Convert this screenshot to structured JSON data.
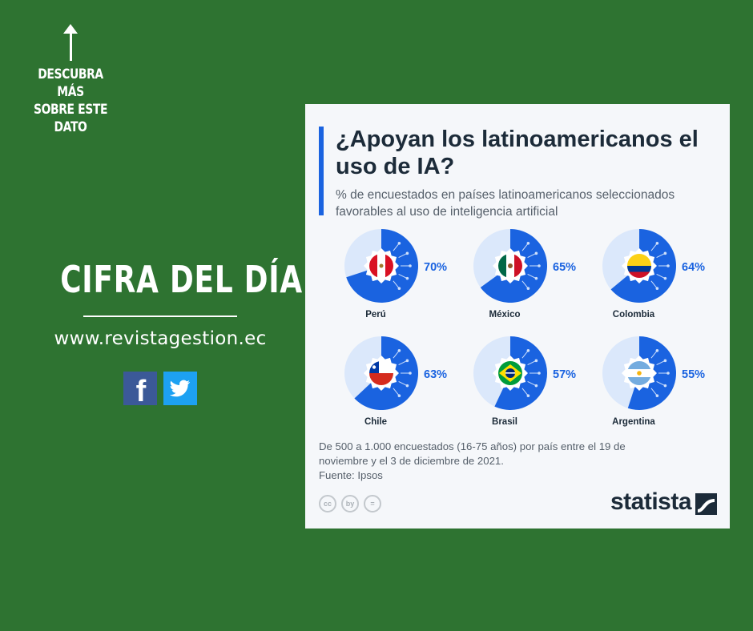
{
  "cta": {
    "text": "DESCUBRA MÁS\nSOBRE ESTE\nDATO"
  },
  "hero": {
    "title": "CIFRA DEL DÍA",
    "url": "www.revistagestion.ec"
  },
  "social": [
    {
      "name": "facebook-icon",
      "glyph": "f"
    },
    {
      "name": "twitter-icon"
    }
  ],
  "card": {
    "title": "¿Apoyan los latinoamericanos el uso de IA?",
    "subtitle": "% de encuestados en países latinoamericanos seleccionados favorables al uso de inteligencia artificial",
    "note": "De 500 a 1.000 encuestados (16-75 años) por país entre el 19 de noviembre y el 3 de diciembre de 2021.",
    "source": "Fuente: Ipsos",
    "cc_icons": [
      "cc",
      "by",
      "="
    ],
    "brand": "statista"
  },
  "colors": {
    "background": "#2e7331",
    "accent": "#1a63e0",
    "track": "#dbe8fb",
    "text": "#1c2b39"
  },
  "chart_data": {
    "type": "pie",
    "title": "¿Apoyan los latinoamericanos el uso de IA?",
    "unit": "%",
    "categories": [
      "Perú",
      "México",
      "Colombia",
      "Chile",
      "Brasil",
      "Argentina"
    ],
    "values": [
      70,
      65,
      64,
      63,
      57,
      55
    ],
    "labels": [
      "70%",
      "65%",
      "64%",
      "63%",
      "57%",
      "55%"
    ],
    "flags": [
      "peru",
      "mexico",
      "colombia",
      "chile",
      "brasil",
      "argentina"
    ]
  }
}
